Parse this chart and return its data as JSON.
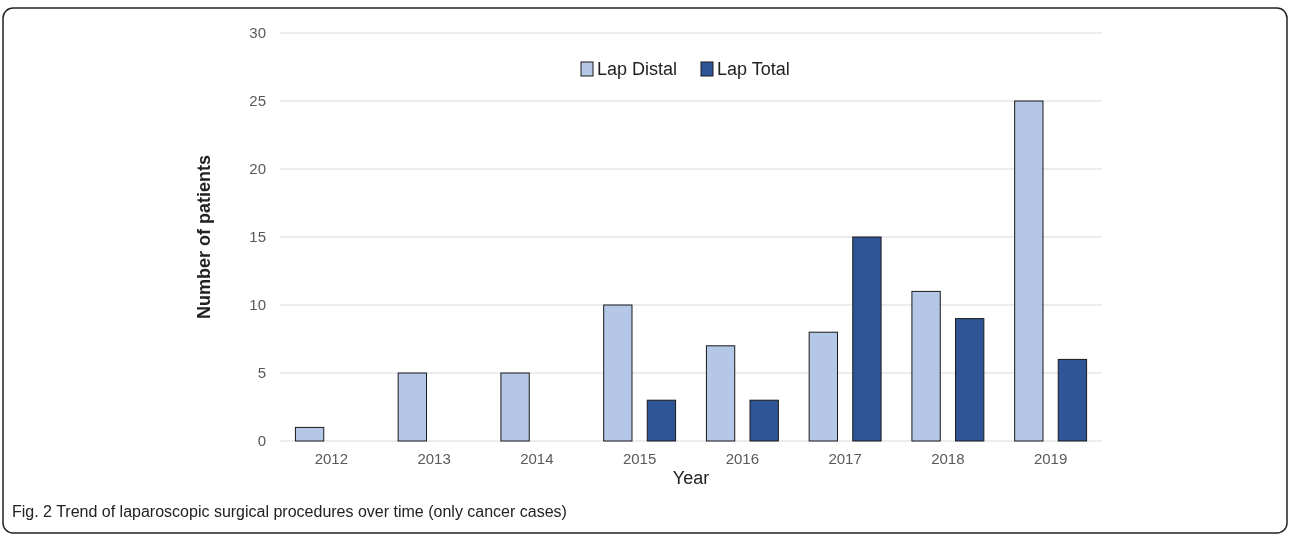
{
  "chart_data": {
    "type": "bar",
    "xlabel": "Year",
    "ylabel": "Number of patients",
    "categories": [
      "2012",
      "2013",
      "2014",
      "2015",
      "2016",
      "2017",
      "2018",
      "2019"
    ],
    "series": [
      {
        "name": "Lap Distal",
        "color": "#b4c7e7",
        "values": [
          1,
          5,
          5,
          10,
          7,
          8,
          11,
          25
        ]
      },
      {
        "name": "Lap Total",
        "color": "#2f5597",
        "values": [
          null,
          null,
          null,
          3,
          3,
          15,
          9,
          6
        ]
      }
    ],
    "ylim": [
      0,
      30
    ],
    "yticks": [
      0,
      5,
      10,
      15,
      20,
      25,
      30
    ],
    "grid": "y",
    "legend": "top",
    "annotations": [
      "Fig. 2 Trend of laparoscopic surgical procedures over time (only cancer cases)"
    ]
  }
}
